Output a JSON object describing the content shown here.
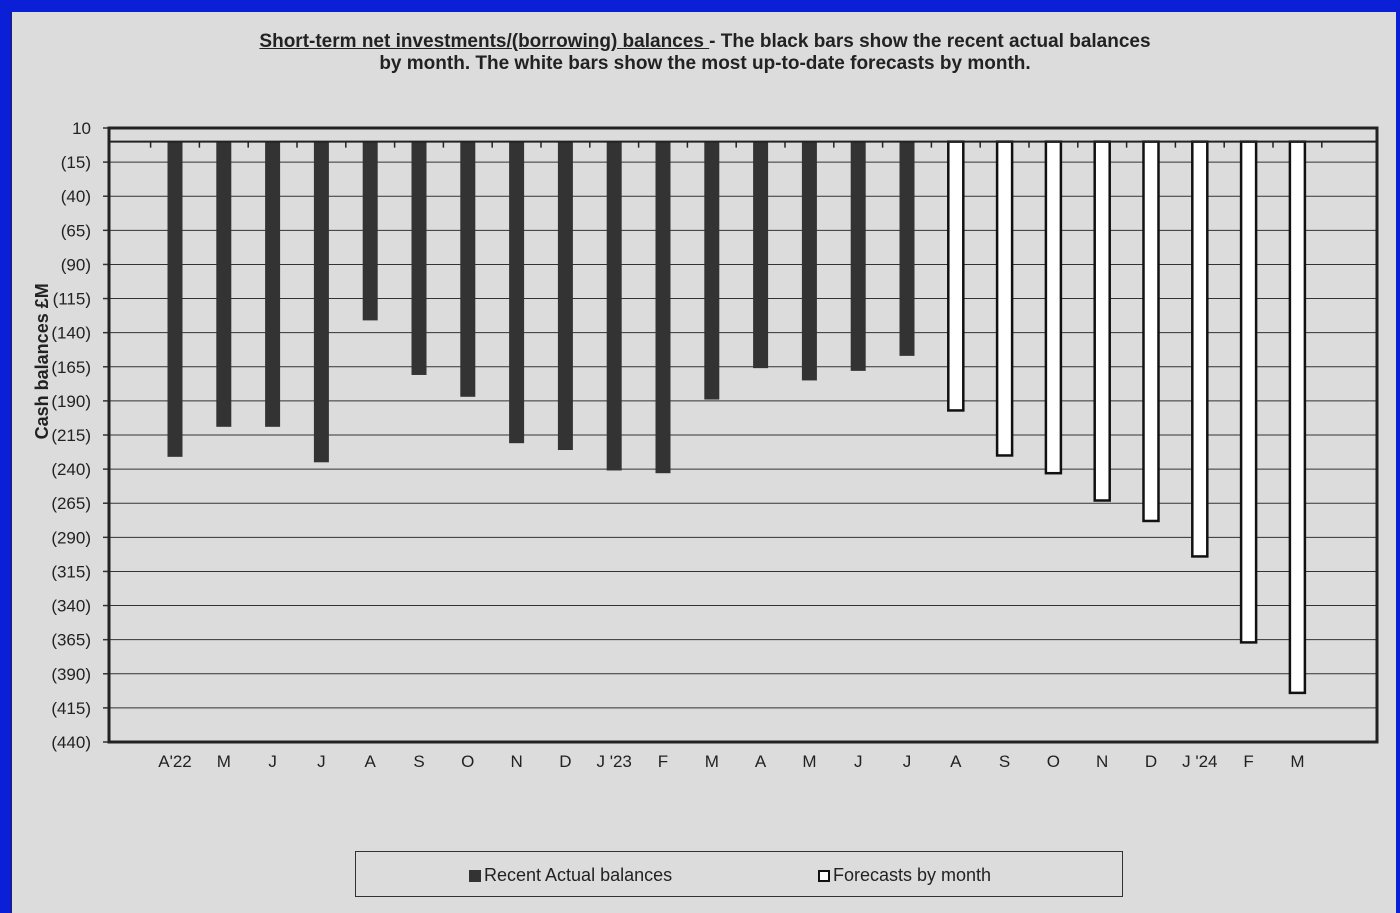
{
  "title": {
    "underlined": "Short-term net investments/(borrowing) balances ",
    "rest_line1": "- The black bars show the recent actual balances",
    "line2": "by month.  The white bars show the most up-to-date forecasts by month."
  },
  "legend": {
    "actual": "Recent Actual balances",
    "forecast": "Forecasts by month"
  },
  "colors": {
    "actual": "#333333",
    "forecast": "#ffffff",
    "background": "#dcdcdc",
    "border": "#0b1fd6"
  },
  "chart_data": {
    "type": "bar",
    "ylabel": "Cash balances £M",
    "ylim": [
      -440,
      10
    ],
    "yticks": [
      10,
      -15,
      -40,
      -65,
      -90,
      -115,
      -140,
      -165,
      -190,
      -215,
      -240,
      -265,
      -290,
      -315,
      -340,
      -365,
      -390,
      -415,
      -440
    ],
    "ytick_labels": [
      "10",
      "(15)",
      "(40)",
      "(65)",
      "(90)",
      "(115)",
      "(140)",
      "(165)",
      "(190)",
      "(215)",
      "(240)",
      "(265)",
      "(290)",
      "(315)",
      "(340)",
      "(365)",
      "(390)",
      "(415)",
      "(440)"
    ],
    "grid": true,
    "categories": [
      "A'22",
      "M",
      "J",
      "J",
      "A",
      "S",
      "O",
      "N",
      "D",
      "J '23",
      "F",
      "M",
      "A",
      "M",
      "J",
      "J",
      "A",
      "S",
      "O",
      "N",
      "D",
      "J '24",
      "F",
      "M"
    ],
    "series": [
      {
        "name": "Recent Actual balances",
        "values": [
          -231,
          -209,
          -209,
          -235,
          -131,
          -171,
          -187,
          -221,
          -226,
          -241,
          -243,
          -189,
          -166,
          -175,
          -168,
          -157,
          null,
          null,
          null,
          null,
          null,
          null,
          null,
          null
        ]
      },
      {
        "name": "Forecasts by month",
        "values": [
          null,
          null,
          null,
          null,
          null,
          null,
          null,
          null,
          null,
          null,
          null,
          null,
          null,
          null,
          null,
          null,
          -197,
          -230,
          -243,
          -263,
          -278,
          -304,
          -367,
          -404
        ]
      }
    ],
    "legend_position": "bottom"
  }
}
